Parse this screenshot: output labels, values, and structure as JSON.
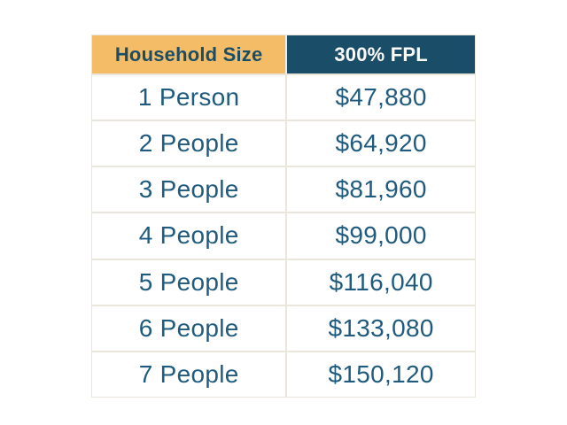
{
  "table": {
    "header": {
      "col1": "Household Size",
      "col2": "300% FPL"
    },
    "rows": [
      {
        "size": "1 Person",
        "fpl": "$47,880"
      },
      {
        "size": "2 People",
        "fpl": "$64,920"
      },
      {
        "size": "3 People",
        "fpl": "$81,960"
      },
      {
        "size": "4 People",
        "fpl": "$99,000"
      },
      {
        "size": "5 People",
        "fpl": "$116,040"
      },
      {
        "size": "6 People",
        "fpl": "$133,080"
      },
      {
        "size": "7 People",
        "fpl": "$150,120"
      }
    ]
  },
  "colors": {
    "header_col1_bg": "#F4BC66",
    "header_col2_bg": "#1A4D67",
    "header_col1_text": "#1A4D67",
    "header_col2_text": "#FBFAF7",
    "body_text": "#1F5B7E",
    "divider": "#EAE6DB",
    "page_bg": "#FFFFFF"
  },
  "chart_data": {
    "type": "table",
    "title": "",
    "columns": [
      "Household Size",
      "300% FPL"
    ],
    "rows": [
      [
        "1 Person",
        "$47,880"
      ],
      [
        "2 People",
        "$64,920"
      ],
      [
        "3 People",
        "$81,960"
      ],
      [
        "4 People",
        "$99,000"
      ],
      [
        "5 People",
        "$116,040"
      ],
      [
        "6 People",
        "$133,080"
      ],
      [
        "7 People",
        "$150,120"
      ]
    ],
    "fpl_values_numeric": [
      47880,
      64920,
      81960,
      99000,
      116040,
      133080,
      150120
    ],
    "household_sizes_numeric": [
      1,
      2,
      3,
      4,
      5,
      6,
      7
    ]
  }
}
